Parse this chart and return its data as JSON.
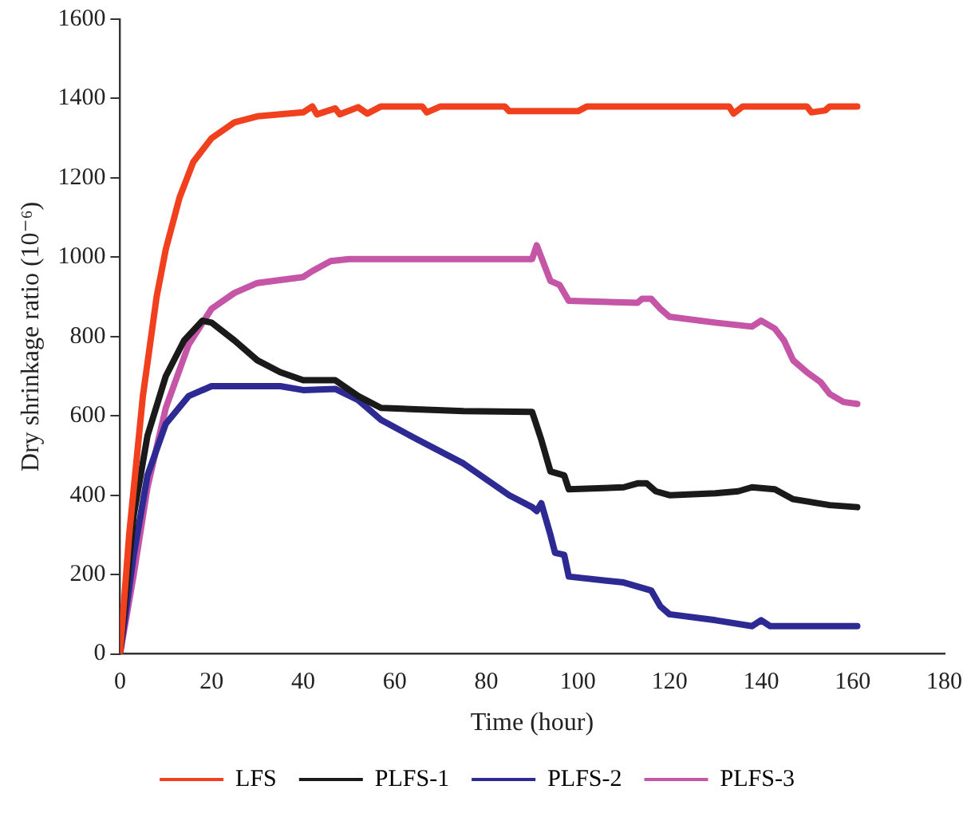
{
  "chart_data": {
    "type": "line",
    "xlabel": "Time (hour)",
    "ylabel": "Dry shrinkage ratio (10⁻⁶)",
    "xlim": [
      0,
      180
    ],
    "xticks": [
      0,
      20,
      40,
      60,
      80,
      100,
      120,
      140,
      160,
      180
    ],
    "ylim": [
      0,
      1600
    ],
    "yticks": [
      0,
      200,
      400,
      600,
      800,
      1000,
      1200,
      1400,
      1600
    ],
    "grid": false,
    "legend": "bottom",
    "marker": "none",
    "line_style": "solid",
    "series": [
      {
        "name": "LFS",
        "color": "#f0401e",
        "x": [
          0,
          2,
          5,
          8,
          10,
          13,
          16,
          20,
          25,
          30,
          40,
          42,
          43,
          47,
          48,
          52,
          54,
          57,
          66,
          67,
          70,
          84,
          85,
          100,
          102,
          133,
          134,
          136,
          150,
          151,
          154,
          155,
          161
        ],
        "values": [
          0,
          300,
          650,
          900,
          1020,
          1150,
          1240,
          1300,
          1340,
          1355,
          1365,
          1380,
          1360,
          1375,
          1360,
          1378,
          1362,
          1380,
          1380,
          1365,
          1380,
          1380,
          1368,
          1368,
          1380,
          1380,
          1362,
          1380,
          1380,
          1365,
          1370,
          1380,
          1380
        ]
      },
      {
        "name": "PLFS-1",
        "color": "#1a1a1a",
        "x": [
          0,
          3,
          6,
          10,
          14,
          18,
          20,
          25,
          30,
          35,
          40,
          47,
          52,
          57,
          75,
          90,
          92,
          94,
          97,
          98,
          110,
          113,
          115,
          117,
          120,
          130,
          135,
          138,
          143,
          147,
          155,
          161
        ],
        "values": [
          0,
          350,
          550,
          700,
          790,
          840,
          835,
          790,
          740,
          710,
          690,
          690,
          650,
          620,
          612,
          610,
          540,
          460,
          450,
          415,
          420,
          430,
          430,
          410,
          400,
          405,
          410,
          420,
          415,
          390,
          375,
          370
        ]
      },
      {
        "name": "PLFS-2",
        "color": "#2e2a94",
        "x": [
          0,
          3,
          6,
          10,
          15,
          20,
          35,
          40,
          47,
          52,
          57,
          65,
          75,
          85,
          90,
          91,
          92,
          94,
          95,
          97,
          98,
          110,
          113,
          116,
          118,
          120,
          130,
          138,
          140,
          142,
          161
        ],
        "values": [
          0,
          250,
          450,
          580,
          650,
          675,
          675,
          665,
          668,
          640,
          590,
          540,
          480,
          400,
          370,
          360,
          380,
          300,
          255,
          250,
          195,
          180,
          170,
          160,
          120,
          100,
          85,
          70,
          85,
          70,
          70
        ]
      },
      {
        "name": "PLFS-3",
        "color": "#c555a6",
        "x": [
          0,
          3,
          6,
          10,
          15,
          20,
          25,
          30,
          40,
          42,
          46,
          50,
          90,
          91,
          92,
          94,
          96,
          98,
          113,
          114,
          116,
          118,
          120,
          130,
          138,
          140,
          143,
          145,
          147,
          150,
          153,
          155,
          158,
          161
        ],
        "values": [
          0,
          200,
          420,
          620,
          780,
          870,
          910,
          935,
          950,
          965,
          990,
          995,
          995,
          1030,
          1000,
          940,
          930,
          890,
          885,
          895,
          895,
          870,
          850,
          835,
          825,
          840,
          820,
          790,
          740,
          710,
          685,
          655,
          635,
          630
        ]
      }
    ]
  }
}
